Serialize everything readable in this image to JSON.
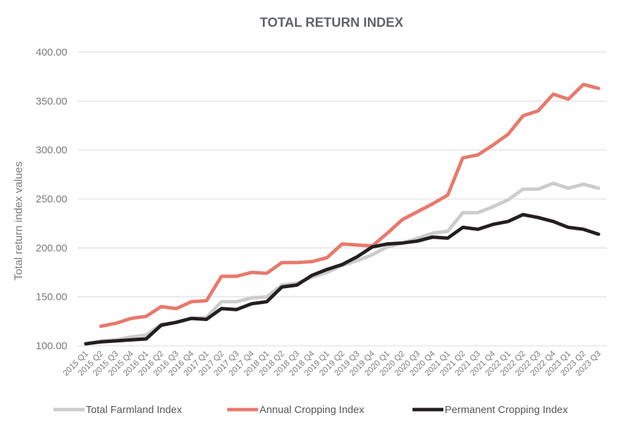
{
  "chart_data": {
    "type": "line",
    "title": "TOTAL RETURN INDEX",
    "xlabel": "",
    "ylabel": "Total return index values",
    "ylim": [
      100,
      400
    ],
    "yticks": [
      "100.00",
      "150.00",
      "200.00",
      "250.00",
      "300.00",
      "350.00",
      "400.00"
    ],
    "grid": "horizontal",
    "legend_position": "bottom",
    "categories": [
      "2015 Q1",
      "2015 Q2",
      "2015 Q3",
      "2015 Q4",
      "2016 Q1",
      "2016 Q2",
      "2016 Q3",
      "2016 Q4",
      "2017 Q1",
      "2017 Q2",
      "2017 Q3",
      "2017 Q4",
      "2018 Q1",
      "2018 Q2",
      "2018 Q3",
      "2018 Q4",
      "2019 Q1",
      "2019 Q2",
      "2019 Q3",
      "2019 Q4",
      "2020 Q1",
      "2020 Q2",
      "2020 Q3",
      "2020 Q4",
      "2021 Q1",
      "2021 Q2",
      "2021 Q3",
      "2021 Q4",
      "2022 Q1",
      "2022 Q2",
      "2022 Q3",
      "2022 Q4",
      "2023 Q1",
      "2023 Q2",
      "2023 Q3"
    ],
    "series": [
      {
        "name": "Total Farmland Index",
        "color": "#cccccc",
        "values": [
          102,
          105,
          106,
          109,
          111,
          122,
          124,
          128,
          129,
          145,
          145,
          149,
          150,
          162,
          164,
          170,
          175,
          182,
          187,
          193,
          201,
          205,
          210,
          215,
          217,
          236,
          236,
          242,
          249,
          260,
          260,
          266,
          261,
          265,
          261
        ]
      },
      {
        "name": "Annual Cropping Index",
        "color": "#e8796c",
        "values": [
          null,
          120,
          123,
          128,
          130,
          140,
          138,
          145,
          146,
          171,
          171,
          175,
          174,
          185,
          185,
          186,
          190,
          204,
          203,
          202,
          215,
          229,
          237,
          245,
          254,
          292,
          295,
          305,
          316,
          335,
          340,
          357,
          352,
          367,
          363
        ]
      },
      {
        "name": "Permanent Cropping Index",
        "color": "#231f20",
        "values": [
          102,
          104,
          105,
          106,
          107,
          121,
          124,
          128,
          127,
          138,
          137,
          143,
          145,
          160,
          162,
          172,
          178,
          183,
          191,
          201,
          204,
          205,
          207,
          211,
          210,
          221,
          219,
          224,
          227,
          234,
          231,
          227,
          221,
          219,
          214
        ]
      }
    ]
  }
}
